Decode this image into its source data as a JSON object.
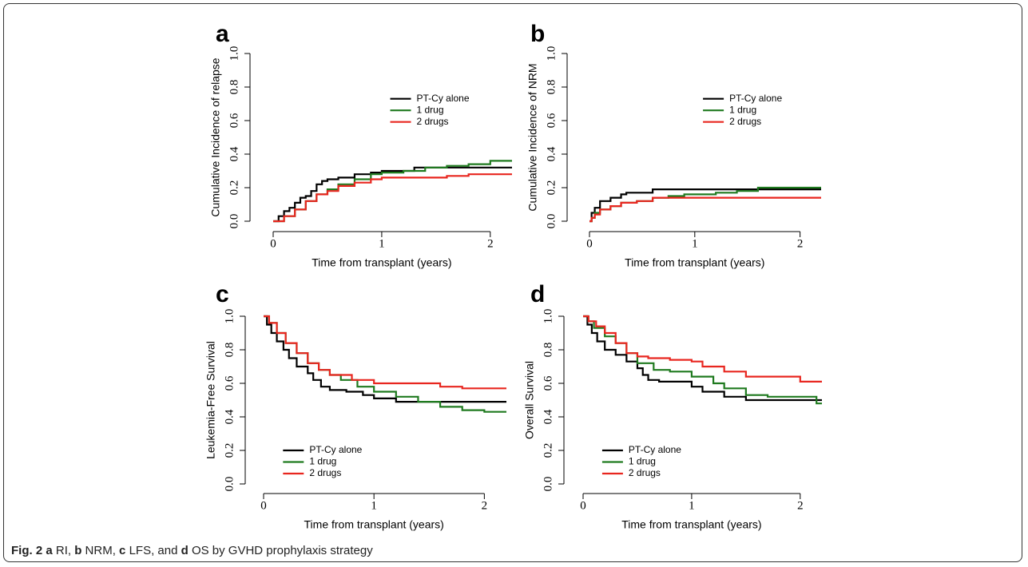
{
  "caption": [
    "Fig. 2",
    "a",
    "RI,",
    "b",
    "NRM,",
    "c",
    "LFS, and",
    "d",
    "OS by GVHD prophylaxis strategy"
  ],
  "chart_data": [
    {
      "type": "line",
      "step": "post",
      "panel": "a",
      "y_label": "Cumulative Incidence of relapse",
      "x_label": "Time from transplant (years)",
      "xlim": [
        0,
        2.2
      ],
      "ylim": [
        0,
        1
      ],
      "xticks": [
        0,
        1,
        2
      ],
      "yticks": [
        {
          "value": 0,
          "label": "0.0"
        },
        0.2,
        0.4,
        0.6,
        0.8,
        {
          "value": 1,
          "label": "1.0"
        }
      ],
      "legend": "upper right",
      "series": [
        {
          "name": "PT-Cy alone",
          "color": "#000000",
          "x": [
            0,
            0.05,
            0.1,
            0.15,
            0.2,
            0.25,
            0.3,
            0.35,
            0.4,
            0.45,
            0.5,
            0.6,
            0.75,
            0.9,
            1.0,
            1.3,
            2.2
          ],
          "values": [
            0,
            0.03,
            0.06,
            0.08,
            0.11,
            0.14,
            0.15,
            0.18,
            0.22,
            0.24,
            0.25,
            0.26,
            0.28,
            0.29,
            0.3,
            0.32,
            0.32
          ]
        },
        {
          "name": "1 drug",
          "color": "#1f7a1f",
          "x": [
            0,
            0.1,
            0.2,
            0.3,
            0.4,
            0.5,
            0.6,
            0.75,
            0.9,
            1.0,
            1.2,
            1.4,
            1.6,
            1.8,
            2.0,
            2.2
          ],
          "values": [
            0,
            0.03,
            0.07,
            0.12,
            0.16,
            0.19,
            0.22,
            0.25,
            0.28,
            0.29,
            0.3,
            0.32,
            0.33,
            0.34,
            0.36,
            0.36
          ]
        },
        {
          "name": "2 drugs",
          "color": "#e8261f",
          "x": [
            0,
            0.1,
            0.2,
            0.3,
            0.4,
            0.5,
            0.6,
            0.75,
            0.9,
            1.0,
            1.3,
            1.6,
            1.8,
            2.2
          ],
          "values": [
            0,
            0.03,
            0.07,
            0.12,
            0.16,
            0.18,
            0.21,
            0.23,
            0.25,
            0.26,
            0.26,
            0.27,
            0.28,
            0.28
          ]
        }
      ]
    },
    {
      "type": "line",
      "step": "post",
      "panel": "b",
      "y_label": "Cumulative Incidence of NRM",
      "x_label": "Time from transplant (years)",
      "xlim": [
        0,
        2.2
      ],
      "ylim": [
        0,
        1
      ],
      "xticks": [
        0,
        1,
        2
      ],
      "yticks": [
        {
          "value": 0,
          "label": "0.0"
        },
        0.2,
        0.4,
        0.6,
        0.8,
        {
          "value": 1,
          "label": "1.0"
        }
      ],
      "legend": "upper right",
      "series": [
        {
          "name": "PT-Cy alone",
          "color": "#000000",
          "x": [
            0,
            0.02,
            0.05,
            0.1,
            0.2,
            0.3,
            0.35,
            0.6,
            1.5,
            2.2
          ],
          "values": [
            0,
            0.05,
            0.08,
            0.12,
            0.14,
            0.16,
            0.17,
            0.19,
            0.19,
            0.19
          ]
        },
        {
          "name": "1 drug",
          "color": "#1f7a1f",
          "x": [
            0,
            0.02,
            0.05,
            0.1,
            0.2,
            0.3,
            0.45,
            0.6,
            0.75,
            0.9,
            1.2,
            1.4,
            1.6,
            2.2
          ],
          "values": [
            0,
            0.02,
            0.05,
            0.07,
            0.09,
            0.11,
            0.12,
            0.14,
            0.15,
            0.16,
            0.17,
            0.18,
            0.2,
            0.2
          ]
        },
        {
          "name": "2 drugs",
          "color": "#e8261f",
          "x": [
            0,
            0.02,
            0.05,
            0.1,
            0.2,
            0.3,
            0.45,
            0.6,
            2.2
          ],
          "values": [
            0,
            0.02,
            0.04,
            0.07,
            0.09,
            0.11,
            0.12,
            0.14,
            0.14
          ]
        }
      ]
    },
    {
      "type": "line",
      "step": "post",
      "panel": "c",
      "y_label": "Leukemia-Free Survival",
      "x_label": "Time from transplant (years)",
      "xlim": [
        0,
        2.2
      ],
      "ylim": [
        0,
        1
      ],
      "xticks": [
        0,
        1,
        2
      ],
      "yticks": [
        {
          "value": 0,
          "label": "0.0"
        },
        0.2,
        0.4,
        0.6,
        0.8,
        {
          "value": 1,
          "label": "1.0"
        }
      ],
      "legend": "lower left",
      "series": [
        {
          "name": "PT-Cy alone",
          "color": "#000000",
          "x": [
            0,
            0.03,
            0.07,
            0.12,
            0.18,
            0.23,
            0.3,
            0.4,
            0.45,
            0.52,
            0.6,
            0.75,
            0.9,
            1.0,
            1.2,
            2.2
          ],
          "values": [
            1,
            0.95,
            0.9,
            0.85,
            0.8,
            0.75,
            0.7,
            0.66,
            0.62,
            0.58,
            0.56,
            0.55,
            0.53,
            0.51,
            0.49,
            0.49
          ]
        },
        {
          "name": "1 drug",
          "color": "#1f7a1f",
          "x": [
            0,
            0.05,
            0.12,
            0.2,
            0.3,
            0.4,
            0.5,
            0.6,
            0.7,
            0.85,
            1.0,
            1.2,
            1.4,
            1.6,
            1.8,
            2.0,
            2.2
          ],
          "values": [
            1,
            0.96,
            0.9,
            0.84,
            0.78,
            0.72,
            0.68,
            0.65,
            0.62,
            0.58,
            0.55,
            0.52,
            0.49,
            0.46,
            0.44,
            0.43,
            0.43
          ]
        },
        {
          "name": "2 drugs",
          "color": "#e8261f",
          "x": [
            0,
            0.05,
            0.12,
            0.2,
            0.3,
            0.4,
            0.5,
            0.6,
            0.8,
            1.0,
            1.4,
            1.6,
            1.8,
            2.2
          ],
          "values": [
            1,
            0.96,
            0.9,
            0.84,
            0.78,
            0.72,
            0.68,
            0.65,
            0.62,
            0.6,
            0.6,
            0.58,
            0.57,
            0.57
          ]
        }
      ]
    },
    {
      "type": "line",
      "step": "post",
      "panel": "d",
      "y_label": "Overall Survival",
      "x_label": "Time from transplant (years)",
      "xlim": [
        0,
        2.2
      ],
      "ylim": [
        0,
        1
      ],
      "xticks": [
        0,
        1,
        2
      ],
      "yticks": [
        {
          "value": 0,
          "label": "0.0"
        },
        0.2,
        0.4,
        0.6,
        0.8,
        {
          "value": 1,
          "label": "1.0"
        }
      ],
      "legend": "lower left",
      "series": [
        {
          "name": "PT-Cy alone",
          "color": "#000000",
          "x": [
            0,
            0.04,
            0.08,
            0.13,
            0.2,
            0.3,
            0.4,
            0.5,
            0.55,
            0.6,
            0.7,
            1.0,
            1.1,
            1.3,
            1.5,
            2.2
          ],
          "values": [
            1,
            0.95,
            0.9,
            0.85,
            0.8,
            0.77,
            0.73,
            0.69,
            0.65,
            0.62,
            0.61,
            0.58,
            0.55,
            0.52,
            0.5,
            0.5
          ]
        },
        {
          "name": "1 drug",
          "color": "#1f7a1f",
          "x": [
            0,
            0.05,
            0.1,
            0.2,
            0.3,
            0.4,
            0.5,
            0.65,
            0.8,
            1.0,
            1.2,
            1.3,
            1.5,
            1.7,
            2.0,
            2.15,
            2.2
          ],
          "values": [
            1,
            0.97,
            0.93,
            0.88,
            0.84,
            0.78,
            0.72,
            0.68,
            0.67,
            0.64,
            0.6,
            0.57,
            0.53,
            0.52,
            0.52,
            0.48,
            0.48
          ]
        },
        {
          "name": "2 drugs",
          "color": "#e8261f",
          "x": [
            0,
            0.05,
            0.12,
            0.2,
            0.3,
            0.4,
            0.5,
            0.6,
            0.8,
            1.0,
            1.1,
            1.3,
            1.5,
            1.8,
            2.0,
            2.2
          ],
          "values": [
            1,
            0.97,
            0.94,
            0.9,
            0.84,
            0.78,
            0.76,
            0.75,
            0.74,
            0.73,
            0.7,
            0.67,
            0.64,
            0.64,
            0.61,
            0.61
          ]
        }
      ]
    }
  ]
}
